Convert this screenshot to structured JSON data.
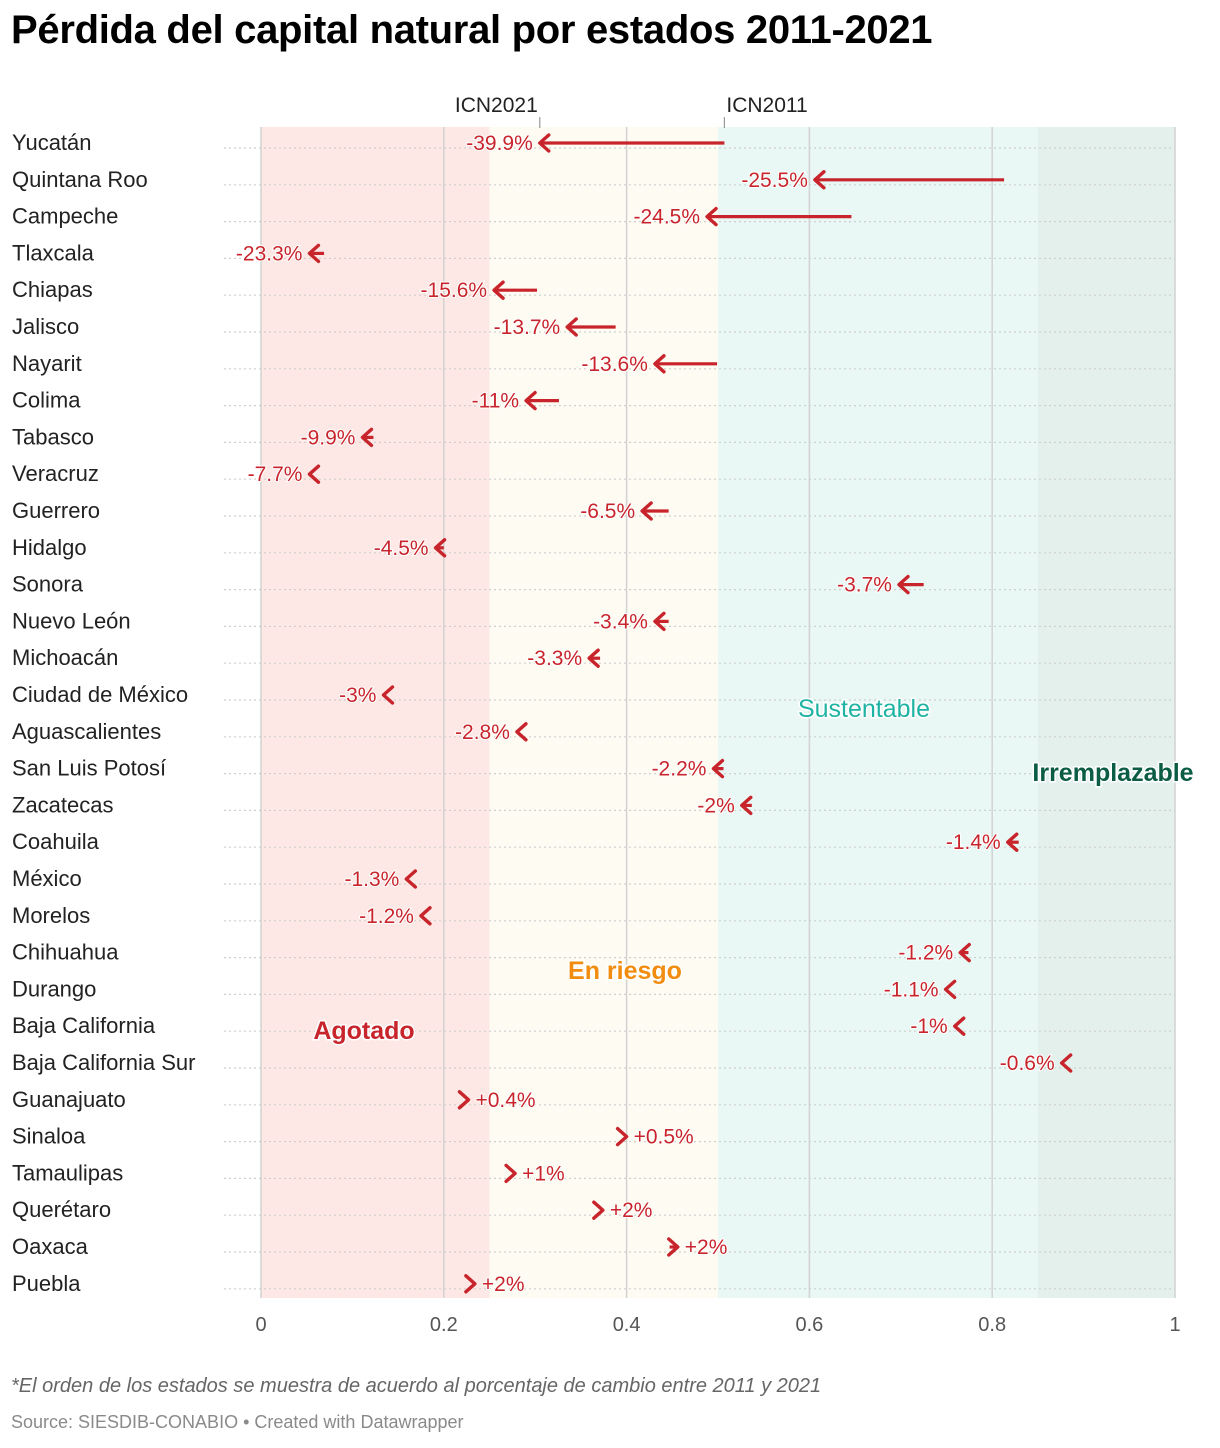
{
  "title": "Pérdida del capital natural por estados 2011-2021",
  "note": "*El orden de los estados se muestra de acuerdo al porcentaje de cambio entre 2011 y 2021",
  "source": "Source: SIESDIB-CONABIO",
  "credit": "Created with Datawrapper",
  "chart_data": {
    "type": "arrow",
    "start_label": "ICN2011",
    "end_label": "ICN2021",
    "xlim": [
      0,
      1
    ],
    "xticks": [
      0,
      0.2,
      0.4,
      0.6,
      0.8,
      1
    ],
    "xtick_labels": [
      "0",
      "0.2",
      "0.4",
      "0.6",
      "0.8",
      "1"
    ],
    "zones": [
      {
        "label": "Agotado",
        "from": 0,
        "to": 0.25,
        "fill": "#fde8e5",
        "text_color": "#c8242b",
        "bold": true
      },
      {
        "label": "En riesgo",
        "from": 0.25,
        "to": 0.5,
        "fill": "#fefbf3",
        "text_color": "#f18c0f",
        "bold": true
      },
      {
        "label": "Sustentable",
        "from": 0.5,
        "to": 0.85,
        "fill": "#e9f8f4",
        "text_color": "#1fb3a3",
        "bold": false
      },
      {
        "label": "Irremplazable",
        "from": 0.85,
        "to": 1,
        "fill": "#e3f0ec",
        "text_color": "#0a5c44",
        "bold": true
      }
    ],
    "arrow_color": "#c8242b",
    "states": [
      {
        "name": "Yucatán",
        "icn2011": 0.507,
        "icn2021": 0.305,
        "change": "-39.9%"
      },
      {
        "name": "Quintana Roo",
        "icn2011": 0.813,
        "icn2021": 0.606,
        "change": "-25.5%"
      },
      {
        "name": "Campeche",
        "icn2011": 0.646,
        "icn2021": 0.488,
        "change": "-24.5%"
      },
      {
        "name": "Tlaxcala",
        "icn2011": 0.069,
        "icn2021": 0.053,
        "change": "-23.3%"
      },
      {
        "name": "Chiapas",
        "icn2011": 0.302,
        "icn2021": 0.255,
        "change": "-15.6%"
      },
      {
        "name": "Jalisco",
        "icn2011": 0.388,
        "icn2021": 0.335,
        "change": "-13.7%"
      },
      {
        "name": "Nayarit",
        "icn2011": 0.499,
        "icn2021": 0.431,
        "change": "-13.6%"
      },
      {
        "name": "Colima",
        "icn2011": 0.326,
        "icn2021": 0.29,
        "change": "-11%"
      },
      {
        "name": "Tabasco",
        "icn2011": 0.123,
        "icn2021": 0.111,
        "change": "-9.9%"
      },
      {
        "name": "Veracruz",
        "icn2011": 0.058,
        "icn2021": 0.053,
        "change": "-7.7%"
      },
      {
        "name": "Guerrero",
        "icn2011": 0.446,
        "icn2021": 0.417,
        "change": "-6.5%"
      },
      {
        "name": "Hidalgo",
        "icn2011": 0.2,
        "icn2021": 0.191,
        "change": "-4.5%"
      },
      {
        "name": "Sonora",
        "icn2011": 0.725,
        "icn2021": 0.698,
        "change": "-3.7%"
      },
      {
        "name": "Nuevo León",
        "icn2011": 0.446,
        "icn2021": 0.431,
        "change": "-3.4%"
      },
      {
        "name": "Michoacán",
        "icn2011": 0.371,
        "icn2021": 0.359,
        "change": "-3.3%"
      },
      {
        "name": "Ciudad de México",
        "icn2011": 0.138,
        "icn2021": 0.134,
        "change": "-3%"
      },
      {
        "name": "Aguascalientes",
        "icn2011": 0.288,
        "icn2021": 0.28,
        "change": "-2.8%"
      },
      {
        "name": "San Luis Potosí",
        "icn2011": 0.506,
        "icn2021": 0.495,
        "change": "-2.2%"
      },
      {
        "name": "Zacatecas",
        "icn2011": 0.537,
        "icn2021": 0.526,
        "change": "-2%"
      },
      {
        "name": "Coahuila",
        "icn2011": 0.829,
        "icn2021": 0.817,
        "change": "-1.4%"
      },
      {
        "name": "México",
        "icn2011": 0.161,
        "icn2021": 0.159,
        "change": "-1.3%"
      },
      {
        "name": "Morelos",
        "icn2011": 0.177,
        "icn2021": 0.175,
        "change": "-1.2%"
      },
      {
        "name": "Chihuahua",
        "icn2011": 0.774,
        "icn2021": 0.765,
        "change": "-1.2%"
      },
      {
        "name": "Durango",
        "icn2011": 0.757,
        "icn2021": 0.749,
        "change": "-1.1%"
      },
      {
        "name": "Baja California",
        "icn2011": 0.767,
        "icn2021": 0.759,
        "change": "-1%"
      },
      {
        "name": "Baja California Sur",
        "icn2011": 0.881,
        "icn2021": 0.876,
        "change": "-0.6%"
      },
      {
        "name": "Guanajuato",
        "icn2011": 0.226,
        "icn2021": 0.227,
        "change": "+0.4%"
      },
      {
        "name": "Sinaloa",
        "icn2011": 0.398,
        "icn2021": 0.4,
        "change": "+0.5%"
      },
      {
        "name": "Tamaulipas",
        "icn2011": 0.275,
        "icn2021": 0.278,
        "change": "+1%"
      },
      {
        "name": "Querétaro",
        "icn2011": 0.367,
        "icn2021": 0.374,
        "change": "+2%"
      },
      {
        "name": "Oaxaca",
        "icn2011": 0.447,
        "icn2021": 0.456,
        "change": "+2%"
      },
      {
        "name": "Puebla",
        "icn2011": 0.229,
        "icn2021": 0.234,
        "change": "+2%"
      }
    ]
  }
}
